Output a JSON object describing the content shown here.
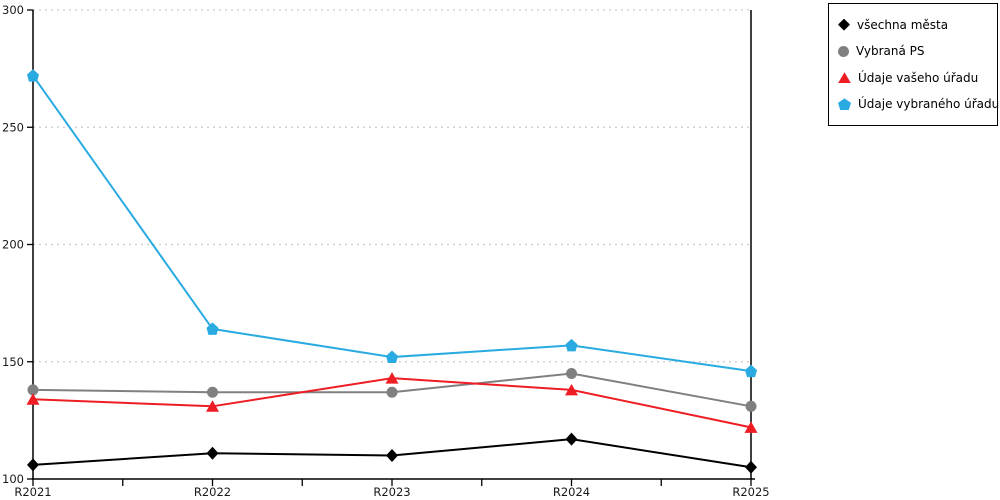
{
  "chart_data": {
    "type": "line",
    "title": "",
    "xlabel": "",
    "ylabel": "",
    "x_categories": [
      "R2021",
      "R2022",
      "R2023",
      "R2024",
      "R2025"
    ],
    "y_ticks": [
      100,
      150,
      200,
      250,
      300
    ],
    "ylim": [
      100,
      300
    ],
    "grid": "horizontal dotted",
    "legend_position": "top-right",
    "series": [
      {
        "name": "všechna města",
        "marker": "diamond",
        "color": "#000000",
        "values": [
          106,
          111,
          110,
          117,
          105
        ]
      },
      {
        "name": "Vybraná PS",
        "marker": "circle",
        "color": "#808080",
        "values": [
          138,
          137,
          137,
          145,
          131
        ]
      },
      {
        "name": "Údaje vašeho úřadu",
        "marker": "triangle",
        "color": "#ee1c23",
        "values": [
          134,
          131,
          143,
          138,
          122
        ]
      },
      {
        "name": "Údaje vybraného úřadu",
        "marker": "pentagon",
        "color": "#29abe2",
        "values": [
          272,
          164,
          152,
          157,
          146
        ]
      }
    ]
  },
  "colors": {
    "background": "#ffffff",
    "axis": "#000000",
    "grid": "#c9c9c9",
    "tick_text": "#1a1a1a",
    "legend_border": "#000000"
  }
}
